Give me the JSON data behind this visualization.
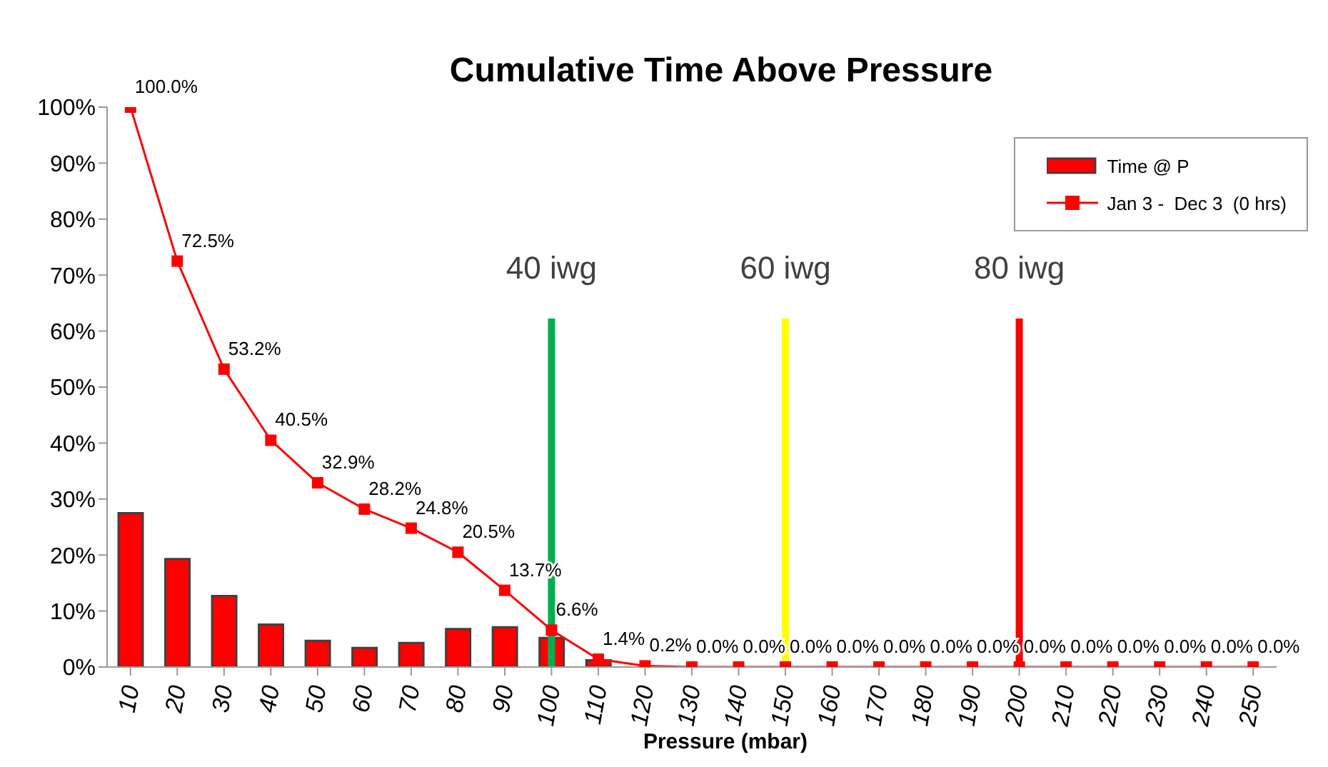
{
  "chart_data": {
    "type": "bar",
    "title": "Cumulative Time Above Pressure",
    "xlabel": "Pressure (mbar)",
    "categories": [
      "10",
      "20",
      "30",
      "40",
      "50",
      "60",
      "70",
      "80",
      "90",
      "100",
      "110",
      "120",
      "130",
      "140",
      "150",
      "160",
      "170",
      "180",
      "190",
      "200",
      "210",
      "220",
      "230",
      "240",
      "250"
    ],
    "series": [
      {
        "name": "Time @ P",
        "color": "#ff0000",
        "values": [
          27.5,
          19.3,
          12.7,
          7.6,
          4.7,
          3.4,
          4.3,
          6.8,
          7.1,
          5.2,
          1.2,
          null,
          0,
          0,
          0,
          0,
          0,
          0,
          0,
          0,
          0,
          0,
          0,
          0,
          0
        ]
      },
      {
        "name": "Jan 3 -  Dec 3  (0 hrs)",
        "type": "line",
        "color": "#ff0000",
        "marker": "square",
        "values": [
          100,
          72.5,
          53.2,
          40.5,
          32.9,
          28.2,
          24.8,
          20.5,
          13.7,
          6.6,
          1.4,
          0.2,
          0,
          0,
          0,
          0,
          0,
          0,
          0,
          0,
          0,
          0,
          0,
          0,
          0
        ],
        "value_labels": [
          "100.0%",
          "72.5%",
          "53.2%",
          "40.5%",
          "32.9%",
          "28.2%",
          "24.8%",
          "20.5%",
          "13.7%",
          "6.6%",
          "1.4%",
          "0.2%",
          "0.0%",
          "0.0%",
          "0.0%",
          "0.0%",
          "0.0%",
          "0.0%",
          "0.0%",
          "0.0%",
          "0.0%",
          "0.0%",
          "0.0%",
          "0.0%",
          "0.0%"
        ]
      }
    ],
    "ylim": [
      0,
      100
    ],
    "yticks": [
      {
        "value": 0,
        "label": "0%"
      },
      {
        "value": 10,
        "label": "10%"
      },
      {
        "value": 20,
        "label": "20%"
      },
      {
        "value": 30,
        "label": "30%"
      },
      {
        "value": 40,
        "label": "40%"
      },
      {
        "value": 50,
        "label": "50%"
      },
      {
        "value": 60,
        "label": "60%"
      },
      {
        "value": 70,
        "label": "70%"
      },
      {
        "value": 80,
        "label": "80%"
      },
      {
        "value": 90,
        "label": "90%"
      },
      {
        "value": 100,
        "label": "100%"
      }
    ],
    "ref_lines": [
      {
        "axis": "x",
        "value": "100",
        "label": "40 iwg",
        "color": "#00b050"
      },
      {
        "axis": "x",
        "value": "150",
        "label": "60 iwg",
        "color": "#ffff00"
      },
      {
        "axis": "x",
        "value": "200",
        "label": "80 iwg",
        "color": "#ff0000"
      }
    ],
    "grid": false,
    "legend": "top right"
  }
}
